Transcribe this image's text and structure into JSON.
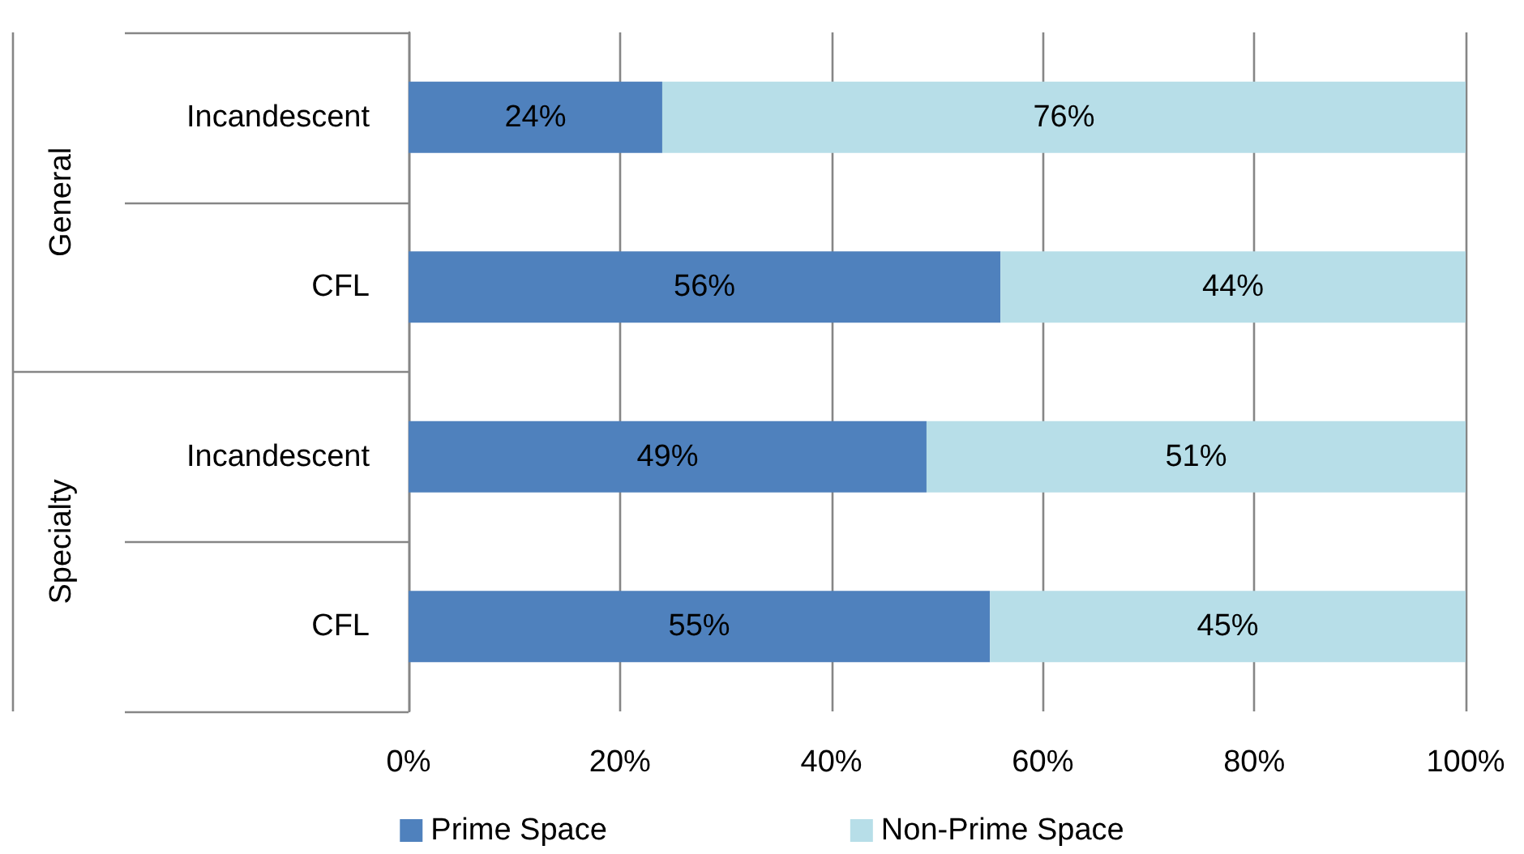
{
  "chart_data": {
    "type": "bar",
    "orientation": "horizontal",
    "stacked": true,
    "categories": [
      "Incandescent",
      "CFL",
      "Incandescent",
      "CFL"
    ],
    "series": [
      {
        "name": "Prime Space",
        "color": "#4f81bd",
        "values": [
          24,
          56,
          49,
          55
        ],
        "value_labels": [
          "24%",
          "56%",
          "49%",
          "55%"
        ]
      },
      {
        "name": "Non-Prime Space",
        "color": "#b7dee8",
        "values": [
          76,
          44,
          51,
          45
        ],
        "value_labels": [
          "76%",
          "44%",
          "51%",
          "45%"
        ]
      }
    ],
    "xlim": [
      0,
      100
    ],
    "xticks": [
      {
        "value": 0,
        "label": "0%"
      },
      {
        "value": 20,
        "label": "20%"
      },
      {
        "value": 40,
        "label": "40%"
      },
      {
        "value": 60,
        "label": "60%"
      },
      {
        "value": 80,
        "label": "80%"
      },
      {
        "value": 100,
        "label": "100%"
      }
    ],
    "grid": "x",
    "legend": "bottom",
    "annotations": [
      "General",
      "Specialty"
    ]
  }
}
